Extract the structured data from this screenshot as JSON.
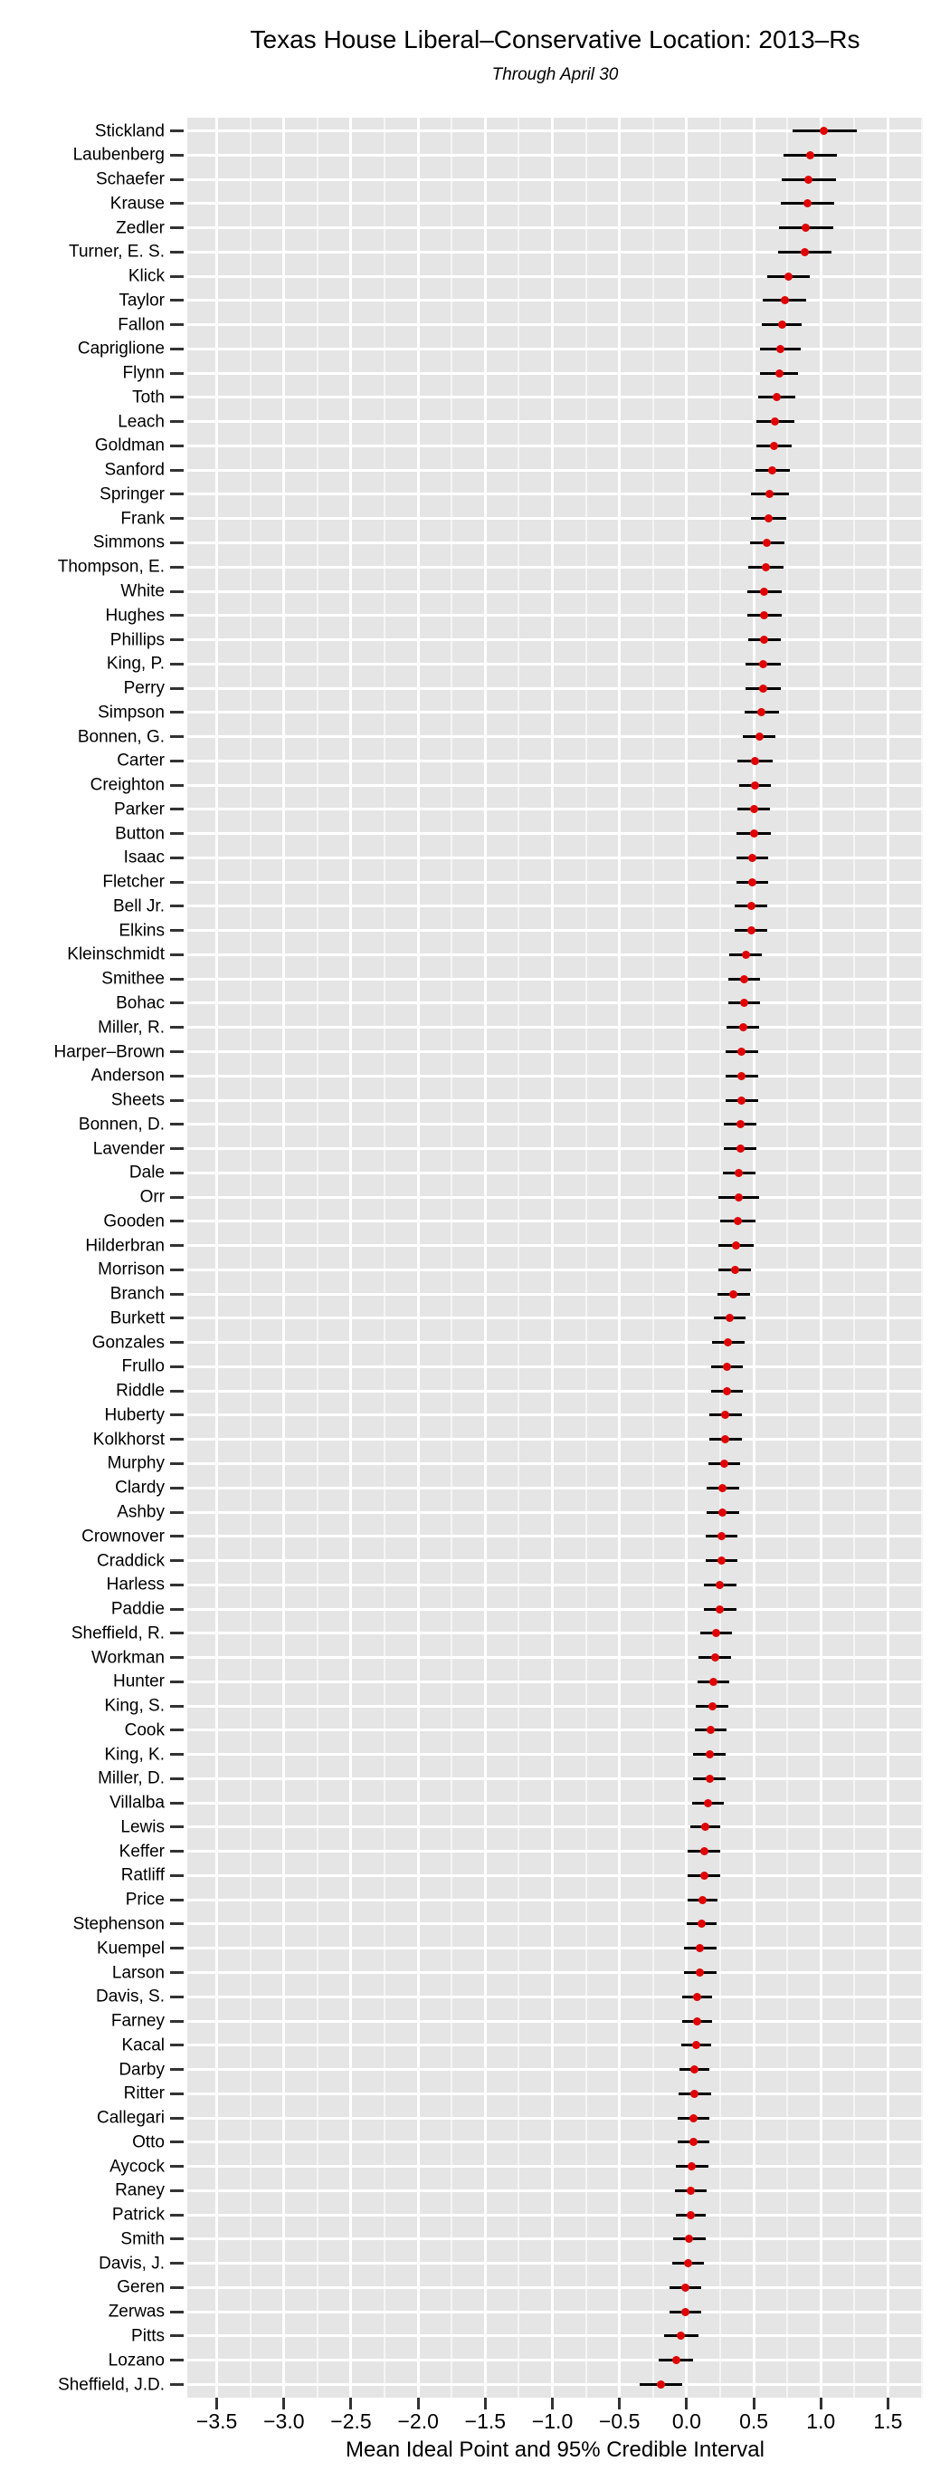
{
  "style": {
    "panel_bg": "#E5E5E5",
    "grid_color": "#FFFFFF",
    "point_color": "#E10000",
    "interval_color": "#000000",
    "tick_color": "#333333",
    "text_color": "#000000"
  },
  "chart_data": {
    "type": "scatter",
    "variant": "dot-with-95-credible-interval",
    "title": "Texas House Liberal–Conservative Location: 2013–Rs",
    "subtitle": "Through April 30",
    "xlabel": "Mean Ideal Point and 95% Credible Interval",
    "ylabel": "",
    "xlim": [
      -3.72,
      1.76
    ],
    "x_major_ticks": [
      -3.5,
      -3.0,
      -2.5,
      -2.0,
      -1.5,
      -1.0,
      -0.5,
      0.0,
      0.5,
      1.0,
      1.5
    ],
    "x_tick_labels": [
      "−3.5",
      "−3.0",
      "−2.5",
      "−2.0",
      "−1.5",
      "−1.0",
      "−0.5",
      "0.0",
      "0.5",
      "1.0",
      "1.5"
    ],
    "x_minor_step": 0.25,
    "grid": "white major+minor vertical gridlines, white horizontal line per row",
    "legend": "none",
    "points": [
      {
        "name": "Stickland",
        "mean": 1.02,
        "lo": 0.79,
        "hi": 1.27
      },
      {
        "name": "Laubenberg",
        "mean": 0.92,
        "lo": 0.72,
        "hi": 1.12
      },
      {
        "name": "Schaefer",
        "mean": 0.91,
        "lo": 0.71,
        "hi": 1.11
      },
      {
        "name": "Krause",
        "mean": 0.9,
        "lo": 0.7,
        "hi": 1.1
      },
      {
        "name": "Zedler",
        "mean": 0.89,
        "lo": 0.69,
        "hi": 1.09
      },
      {
        "name": "Turner, E. S.",
        "mean": 0.88,
        "lo": 0.68,
        "hi": 1.08
      },
      {
        "name": "Klick",
        "mean": 0.76,
        "lo": 0.6,
        "hi": 0.92
      },
      {
        "name": "Taylor",
        "mean": 0.73,
        "lo": 0.57,
        "hi": 0.89
      },
      {
        "name": "Fallon",
        "mean": 0.71,
        "lo": 0.56,
        "hi": 0.86
      },
      {
        "name": "Capriglione",
        "mean": 0.7,
        "lo": 0.55,
        "hi": 0.85
      },
      {
        "name": "Flynn",
        "mean": 0.69,
        "lo": 0.55,
        "hi": 0.83
      },
      {
        "name": "Toth",
        "mean": 0.67,
        "lo": 0.53,
        "hi": 0.81
      },
      {
        "name": "Leach",
        "mean": 0.66,
        "lo": 0.52,
        "hi": 0.8
      },
      {
        "name": "Goldman",
        "mean": 0.65,
        "lo": 0.52,
        "hi": 0.78
      },
      {
        "name": "Sanford",
        "mean": 0.64,
        "lo": 0.51,
        "hi": 0.77
      },
      {
        "name": "Springer",
        "mean": 0.62,
        "lo": 0.48,
        "hi": 0.76
      },
      {
        "name": "Frank",
        "mean": 0.61,
        "lo": 0.48,
        "hi": 0.74
      },
      {
        "name": "Simmons",
        "mean": 0.6,
        "lo": 0.47,
        "hi": 0.73
      },
      {
        "name": "Thompson, E.",
        "mean": 0.59,
        "lo": 0.46,
        "hi": 0.72
      },
      {
        "name": "White",
        "mean": 0.58,
        "lo": 0.45,
        "hi": 0.71
      },
      {
        "name": "Hughes",
        "mean": 0.58,
        "lo": 0.45,
        "hi": 0.71
      },
      {
        "name": "Phillips",
        "mean": 0.58,
        "lo": 0.46,
        "hi": 0.7
      },
      {
        "name": "King, P.",
        "mean": 0.57,
        "lo": 0.44,
        "hi": 0.7
      },
      {
        "name": "Perry",
        "mean": 0.57,
        "lo": 0.44,
        "hi": 0.7
      },
      {
        "name": "Simpson",
        "mean": 0.56,
        "lo": 0.43,
        "hi": 0.69
      },
      {
        "name": "Bonnen, G.",
        "mean": 0.54,
        "lo": 0.42,
        "hi": 0.66
      },
      {
        "name": "Carter",
        "mean": 0.51,
        "lo": 0.38,
        "hi": 0.64
      },
      {
        "name": "Creighton",
        "mean": 0.51,
        "lo": 0.39,
        "hi": 0.63
      },
      {
        "name": "Parker",
        "mean": 0.5,
        "lo": 0.38,
        "hi": 0.62
      },
      {
        "name": "Button",
        "mean": 0.5,
        "lo": 0.37,
        "hi": 0.63
      },
      {
        "name": "Isaac",
        "mean": 0.49,
        "lo": 0.37,
        "hi": 0.61
      },
      {
        "name": "Fletcher",
        "mean": 0.49,
        "lo": 0.37,
        "hi": 0.61
      },
      {
        "name": "Bell Jr.",
        "mean": 0.48,
        "lo": 0.36,
        "hi": 0.6
      },
      {
        "name": "Elkins",
        "mean": 0.48,
        "lo": 0.36,
        "hi": 0.6
      },
      {
        "name": "Kleinschmidt",
        "mean": 0.44,
        "lo": 0.32,
        "hi": 0.56
      },
      {
        "name": "Smithee",
        "mean": 0.43,
        "lo": 0.31,
        "hi": 0.55
      },
      {
        "name": "Bohac",
        "mean": 0.43,
        "lo": 0.31,
        "hi": 0.55
      },
      {
        "name": "Miller, R.",
        "mean": 0.42,
        "lo": 0.3,
        "hi": 0.54
      },
      {
        "name": "Harper–Brown",
        "mean": 0.41,
        "lo": 0.29,
        "hi": 0.53
      },
      {
        "name": "Anderson",
        "mean": 0.41,
        "lo": 0.29,
        "hi": 0.53
      },
      {
        "name": "Sheets",
        "mean": 0.41,
        "lo": 0.29,
        "hi": 0.53
      },
      {
        "name": "Bonnen, D.",
        "mean": 0.4,
        "lo": 0.28,
        "hi": 0.52
      },
      {
        "name": "Lavender",
        "mean": 0.4,
        "lo": 0.28,
        "hi": 0.52
      },
      {
        "name": "Dale",
        "mean": 0.39,
        "lo": 0.27,
        "hi": 0.51
      },
      {
        "name": "Orr",
        "mean": 0.39,
        "lo": 0.24,
        "hi": 0.54
      },
      {
        "name": "Gooden",
        "mean": 0.38,
        "lo": 0.25,
        "hi": 0.51
      },
      {
        "name": "Hilderbran",
        "mean": 0.37,
        "lo": 0.24,
        "hi": 0.5
      },
      {
        "name": "Morrison",
        "mean": 0.36,
        "lo": 0.24,
        "hi": 0.48
      },
      {
        "name": "Branch",
        "mean": 0.35,
        "lo": 0.23,
        "hi": 0.47
      },
      {
        "name": "Burkett",
        "mean": 0.32,
        "lo": 0.2,
        "hi": 0.44
      },
      {
        "name": "Gonzales",
        "mean": 0.31,
        "lo": 0.19,
        "hi": 0.43
      },
      {
        "name": "Frullo",
        "mean": 0.3,
        "lo": 0.18,
        "hi": 0.42
      },
      {
        "name": "Riddle",
        "mean": 0.3,
        "lo": 0.18,
        "hi": 0.42
      },
      {
        "name": "Huberty",
        "mean": 0.29,
        "lo": 0.17,
        "hi": 0.41
      },
      {
        "name": "Kolkhorst",
        "mean": 0.29,
        "lo": 0.17,
        "hi": 0.41
      },
      {
        "name": "Murphy",
        "mean": 0.28,
        "lo": 0.16,
        "hi": 0.4
      },
      {
        "name": "Clardy",
        "mean": 0.27,
        "lo": 0.15,
        "hi": 0.39
      },
      {
        "name": "Ashby",
        "mean": 0.27,
        "lo": 0.15,
        "hi": 0.39
      },
      {
        "name": "Crownover",
        "mean": 0.26,
        "lo": 0.14,
        "hi": 0.38
      },
      {
        "name": "Craddick",
        "mean": 0.26,
        "lo": 0.14,
        "hi": 0.38
      },
      {
        "name": "Harless",
        "mean": 0.25,
        "lo": 0.13,
        "hi": 0.37
      },
      {
        "name": "Paddie",
        "mean": 0.25,
        "lo": 0.13,
        "hi": 0.37
      },
      {
        "name": "Sheffield, R.",
        "mean": 0.22,
        "lo": 0.1,
        "hi": 0.34
      },
      {
        "name": "Workman",
        "mean": 0.21,
        "lo": 0.09,
        "hi": 0.33
      },
      {
        "name": "Hunter",
        "mean": 0.2,
        "lo": 0.08,
        "hi": 0.32
      },
      {
        "name": "King, S.",
        "mean": 0.19,
        "lo": 0.07,
        "hi": 0.31
      },
      {
        "name": "Cook",
        "mean": 0.18,
        "lo": 0.06,
        "hi": 0.3
      },
      {
        "name": "King, K.",
        "mean": 0.17,
        "lo": 0.05,
        "hi": 0.29
      },
      {
        "name": "Miller, D.",
        "mean": 0.17,
        "lo": 0.05,
        "hi": 0.29
      },
      {
        "name": "Villalba",
        "mean": 0.16,
        "lo": 0.04,
        "hi": 0.28
      },
      {
        "name": "Lewis",
        "mean": 0.14,
        "lo": 0.03,
        "hi": 0.25
      },
      {
        "name": "Keffer",
        "mean": 0.13,
        "lo": 0.01,
        "hi": 0.25
      },
      {
        "name": "Ratliff",
        "mean": 0.13,
        "lo": 0.01,
        "hi": 0.25
      },
      {
        "name": "Price",
        "mean": 0.12,
        "lo": 0.01,
        "hi": 0.23
      },
      {
        "name": "Stephenson",
        "mean": 0.11,
        "lo": 0.0,
        "hi": 0.22
      },
      {
        "name": "Kuempel",
        "mean": 0.1,
        "lo": -0.02,
        "hi": 0.22
      },
      {
        "name": "Larson",
        "mean": 0.1,
        "lo": -0.02,
        "hi": 0.22
      },
      {
        "name": "Davis, S.",
        "mean": 0.08,
        "lo": -0.03,
        "hi": 0.19
      },
      {
        "name": "Farney",
        "mean": 0.08,
        "lo": -0.03,
        "hi": 0.19
      },
      {
        "name": "Kacal",
        "mean": 0.07,
        "lo": -0.04,
        "hi": 0.18
      },
      {
        "name": "Darby",
        "mean": 0.06,
        "lo": -0.05,
        "hi": 0.17
      },
      {
        "name": "Ritter",
        "mean": 0.06,
        "lo": -0.06,
        "hi": 0.18
      },
      {
        "name": "Callegari",
        "mean": 0.05,
        "lo": -0.07,
        "hi": 0.17
      },
      {
        "name": "Otto",
        "mean": 0.05,
        "lo": -0.07,
        "hi": 0.17
      },
      {
        "name": "Aycock",
        "mean": 0.04,
        "lo": -0.08,
        "hi": 0.16
      },
      {
        "name": "Raney",
        "mean": 0.03,
        "lo": -0.09,
        "hi": 0.15
      },
      {
        "name": "Patrick",
        "mean": 0.03,
        "lo": -0.08,
        "hi": 0.14
      },
      {
        "name": "Smith",
        "mean": 0.02,
        "lo": -0.1,
        "hi": 0.14
      },
      {
        "name": "Davis, J.",
        "mean": 0.01,
        "lo": -0.11,
        "hi": 0.13
      },
      {
        "name": "Geren",
        "mean": -0.01,
        "lo": -0.13,
        "hi": 0.11
      },
      {
        "name": "Zerwas",
        "mean": -0.01,
        "lo": -0.13,
        "hi": 0.11
      },
      {
        "name": "Pitts",
        "mean": -0.04,
        "lo": -0.17,
        "hi": 0.09
      },
      {
        "name": "Lozano",
        "mean": -0.08,
        "lo": -0.21,
        "hi": 0.05
      },
      {
        "name": "Sheffield, J.D.",
        "mean": -0.19,
        "lo": -0.35,
        "hi": -0.03
      }
    ]
  }
}
